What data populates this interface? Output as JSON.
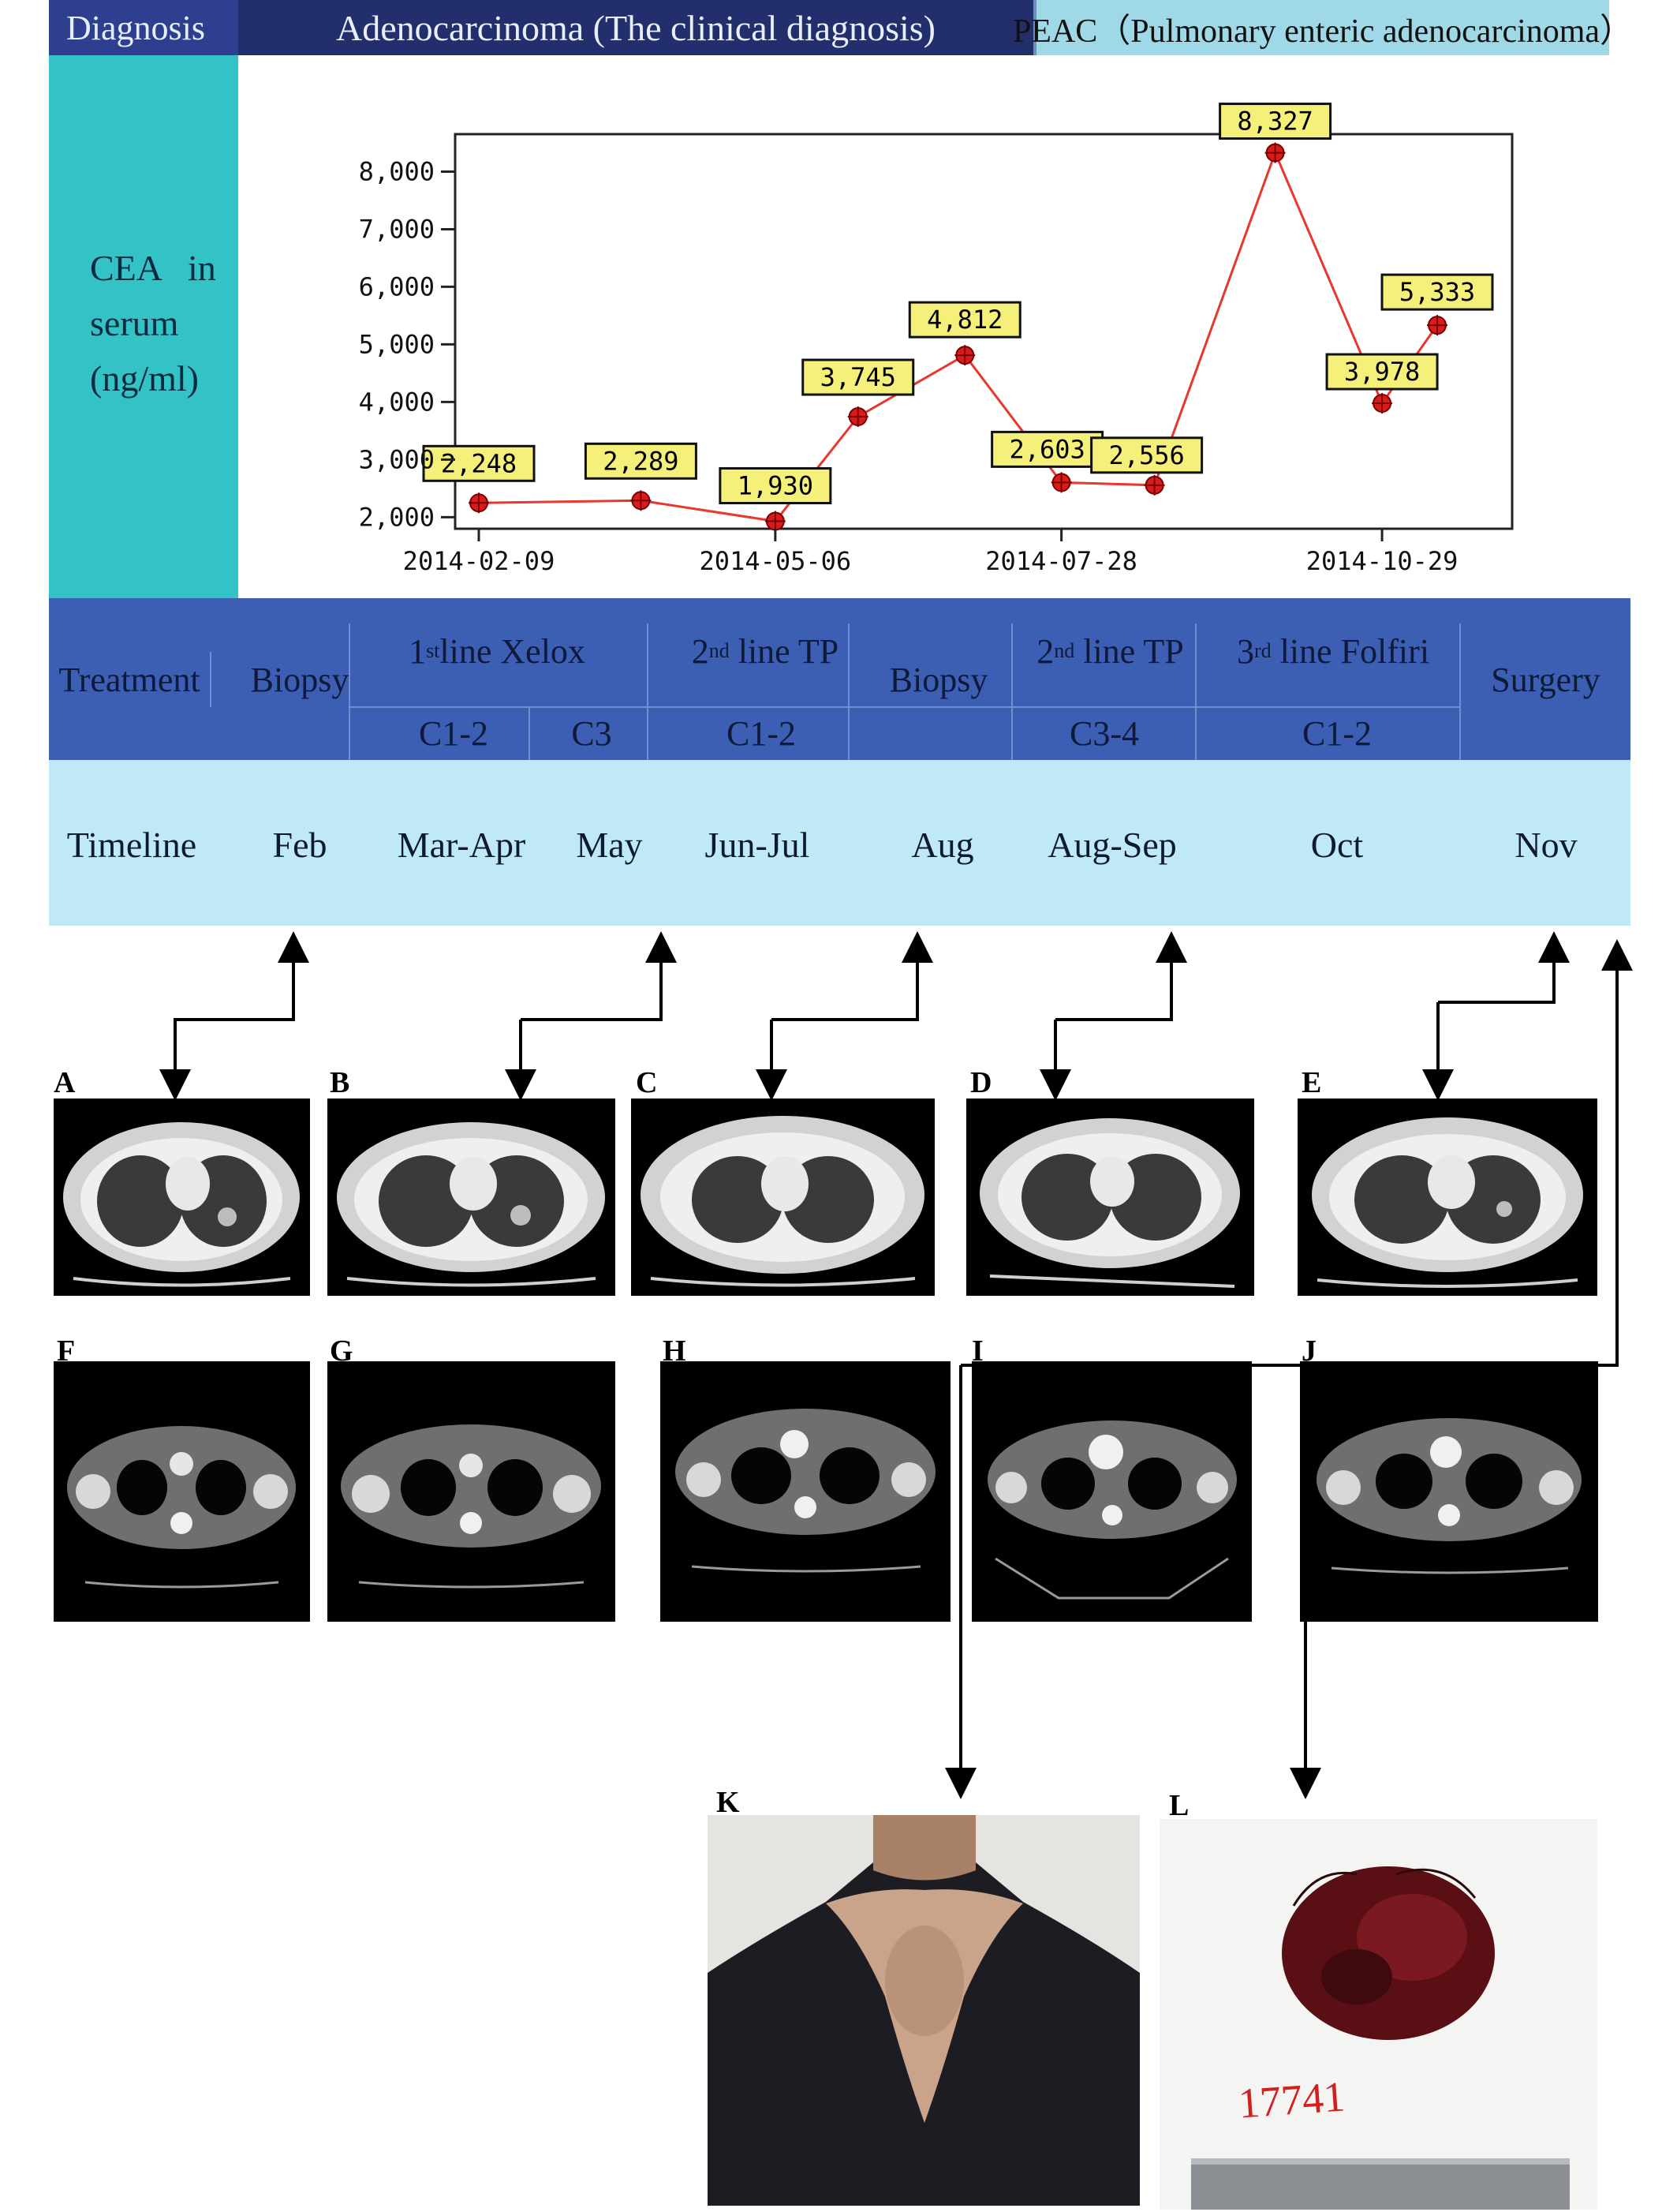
{
  "diagnosis": {
    "label": "Diagnosis",
    "clinical": "Adenocarcinoma (The clinical diagnosis)",
    "final": "PEAC（Pulmonary enteric adenocarcinoma）"
  },
  "cea_label": {
    "line1": "CEA   in",
    "line2": "serum",
    "line3": "(ng/ml)"
  },
  "chart_data": {
    "type": "line",
    "y_ticks": [
      "2,000",
      "3,000",
      "4,000",
      "5,000",
      "6,000",
      "7,000",
      "8,000"
    ],
    "x_ticks": [
      "2014-02-09",
      "2014-05-06",
      "2014-07-28",
      "2014-10-29"
    ],
    "ylim": [
      1800,
      8650
    ],
    "grid": false,
    "line_color": "#e8372c",
    "label_bg": "#f5f07a",
    "series": [
      {
        "points": [
          {
            "x": "2014-02-09",
            "y": 2248,
            "label": "2,248"
          },
          {
            "x": "2014-03-28",
            "y": 2289,
            "label": "2,289"
          },
          {
            "x": "2014-05-06",
            "y": 1930,
            "label": "1,930"
          },
          {
            "x": "2014-05-30",
            "y": 3745,
            "label": "3,745"
          },
          {
            "x": "2014-06-30",
            "y": 4812,
            "label": "4,812"
          },
          {
            "x": "2014-07-28",
            "y": 2603,
            "label": "2,603"
          },
          {
            "x": "2014-08-24",
            "y": 2556,
            "label": "2,556"
          },
          {
            "x": "2014-09-28",
            "y": 8327,
            "label": "8,327"
          },
          {
            "x": "2014-10-29",
            "y": 3978,
            "label": "3,978"
          },
          {
            "x": "2014-11-14",
            "y": 5333,
            "label": "5,333"
          }
        ]
      }
    ]
  },
  "treatment": {
    "label": "Treatment",
    "biopsy1": "Biopsy",
    "line1": {
      "num": "1",
      "sup": "st",
      "text": "line Xelox"
    },
    "line2": {
      "num": "2",
      "sup": "nd",
      "text": " line TP"
    },
    "biopsy2": "Biopsy",
    "line2b": {
      "num": "2",
      "sup": "nd",
      "text": " line TP"
    },
    "line3": {
      "num": "3",
      "sup": "rd",
      "text": " line Folfiri"
    },
    "surgery": "Surgery",
    "cycles": [
      "C1-2",
      "C3",
      "C1-2",
      "C3-4",
      "C1-2"
    ]
  },
  "timeline": {
    "label": "Timeline",
    "months": [
      "Feb",
      "Mar-Apr",
      "May",
      "Jun-Jul",
      "Aug",
      "Aug-Sep",
      "Oct",
      "Nov"
    ]
  },
  "panels": [
    "A",
    "B",
    "C",
    "D",
    "E",
    "F",
    "G",
    "H",
    "I",
    "J",
    "K",
    "L"
  ],
  "specimen_tag": "17741"
}
